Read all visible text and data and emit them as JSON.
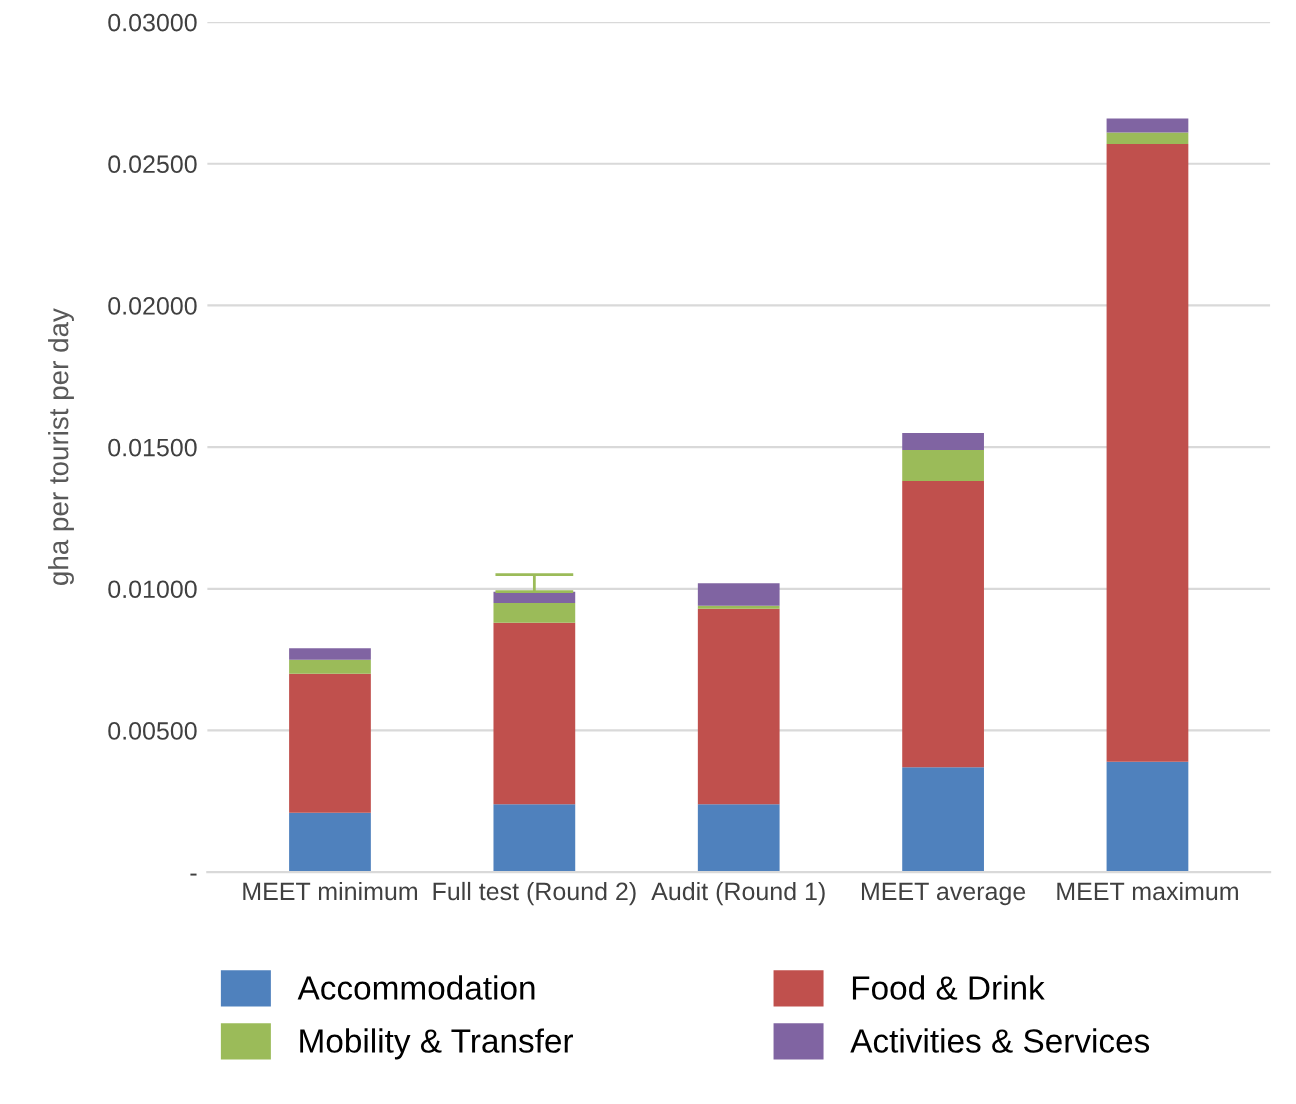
{
  "chart_data": {
    "type": "bar",
    "stacked": true,
    "ylabel": "gha per tourist per day",
    "categories": [
      "MEET minimum",
      "Full test (Round 2)",
      "Audit (Round 1)",
      "MEET average",
      "MEET maximum"
    ],
    "series": [
      {
        "name": "Accommodation",
        "color": "#4f81bd",
        "values": [
          0.0021,
          0.0024,
          0.0024,
          0.0037,
          0.0039
        ]
      },
      {
        "name": "Food & Drink",
        "color": "#c0504d",
        "values": [
          0.0049,
          0.0064,
          0.0069,
          0.0101,
          0.0218
        ]
      },
      {
        "name": "Mobility & Transfer",
        "color": "#9bbb59",
        "values": [
          0.0005,
          0.0007,
          0.0001,
          0.0011,
          0.0004
        ]
      },
      {
        "name": "Activities & Services",
        "color": "#8064a2",
        "values": [
          0.0004,
          0.0004,
          0.0008,
          0.0006,
          0.0005
        ],
        "errors": [
          null,
          [
            0.0099,
            0.0105
          ],
          null,
          null,
          null
        ]
      }
    ],
    "ylim": [
      0,
      0.03
    ],
    "yticks": [
      {
        "value": 0,
        "label": "-"
      },
      {
        "value": 0.005,
        "label": "0.00500"
      },
      {
        "value": 0.01,
        "label": "0.01000"
      },
      {
        "value": 0.015,
        "label": "0.01500"
      },
      {
        "value": 0.02,
        "label": "0.02000"
      },
      {
        "value": 0.025,
        "label": "0.02500"
      },
      {
        "value": 0.03,
        "label": "0.03000"
      }
    ],
    "grid": "y",
    "legend": "bottom"
  }
}
